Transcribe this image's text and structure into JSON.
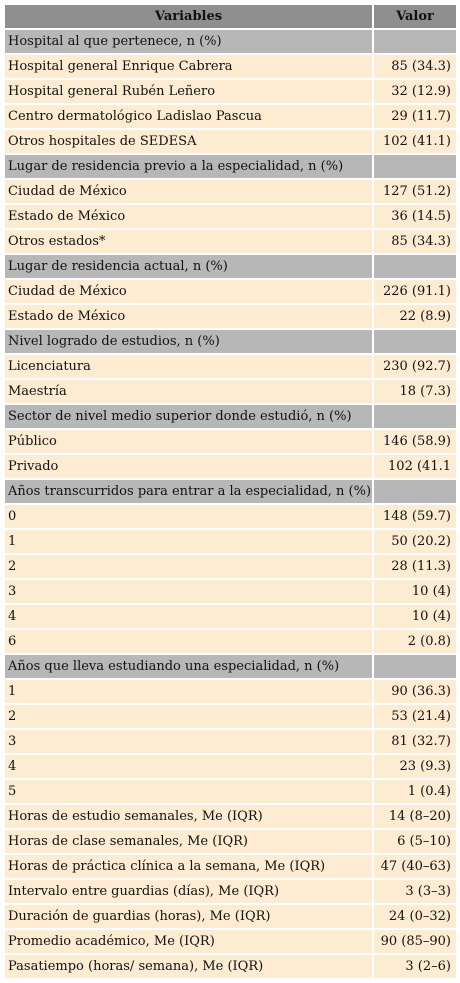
{
  "table": {
    "header": [
      "Variables",
      "Valor"
    ],
    "rows": [
      {
        "label": "Hospital al que pertenece, n (%)"
      },
      {
        "label": "Hospital general Enrique Cabrera",
        "value": "85 (34.3)"
      },
      {
        "label": "Hospital general Rubén Leñero",
        "value": "32 (12.9)"
      },
      {
        "label": "Centro dermatológico Ladislao Pascua",
        "value": "29 (11.7)"
      },
      {
        "label": "Otros hospitales de SEDESA",
        "value": "102 (41.1)"
      },
      {
        "label": "Lugar de residencia previo a la especialidad, n (%)"
      },
      {
        "label": "Ciudad de México",
        "value": "127 (51.2)"
      },
      {
        "label": "Estado de México",
        "value": "36 (14.5)"
      },
      {
        "label": "Otros estados*",
        "value": "85 (34.3)"
      },
      {
        "label": "Lugar de residencia actual, n (%)"
      },
      {
        "label": "Ciudad de México",
        "value": "226 (91.1)"
      },
      {
        "label": "Estado de México",
        "value": "22 (8.9)"
      },
      {
        "label": "Nivel logrado de estudios, n (%)"
      },
      {
        "label": "Licenciatura",
        "value": "230 (92.7)"
      },
      {
        "label": "Maestría",
        "value": "18 (7.3)"
      },
      {
        "label": "Sector de nivel medio superior donde estudió, n (%)"
      },
      {
        "label": "Público",
        "value": "146 (58.9)"
      },
      {
        "label": "Privado",
        "value": "102 (41.1"
      },
      {
        "label": "Años transcurridos para entrar a la especialidad, n (%)"
      },
      {
        "label": "0",
        "value": "148 (59.7)"
      },
      {
        "label": "1",
        "value": "50 (20.2)"
      },
      {
        "label": "2",
        "value": "28 (11.3)"
      },
      {
        "label": "3",
        "value": "10 (4)"
      },
      {
        "label": "4",
        "value": "10 (4)"
      },
      {
        "label": "6",
        "value": "2 (0.8)"
      },
      {
        "label": "Años que lleva estudiando una especialidad, n (%)"
      },
      {
        "label": "1",
        "value": "90 (36.3)"
      },
      {
        "label": "2",
        "value": "53 (21.4)"
      },
      {
        "label": "3",
        "value": "81 (32.7)"
      },
      {
        "label": "4",
        "value": "23 (9.3)"
      },
      {
        "label": "5",
        "value": "1 (0.4)"
      },
      {
        "label": "Horas de estudio semanales, Me (IQR)",
        "value": "14 (8–20)"
      },
      {
        "label": "Horas de clase semanales, Me (IQR)",
        "value": "6 (5–10)"
      },
      {
        "label": "Horas de práctica clínica a la semana, Me (IQR)",
        "value": "47 (40–63)"
      },
      {
        "label": "Intervalo entre guardias (días), Me (IQR)",
        "value": "3 (3–3)"
      },
      {
        "label": "Duración de guardias (horas), Me (IQR)",
        "value": "24 (0–32)"
      },
      {
        "label": "Promedio académico, Me (IQR)",
        "value": "90 (85–90)"
      },
      {
        "label": "Pasatiempo (horas/ semana), Me (IQR)",
        "value": "3 (2–6)"
      }
    ]
  }
}
